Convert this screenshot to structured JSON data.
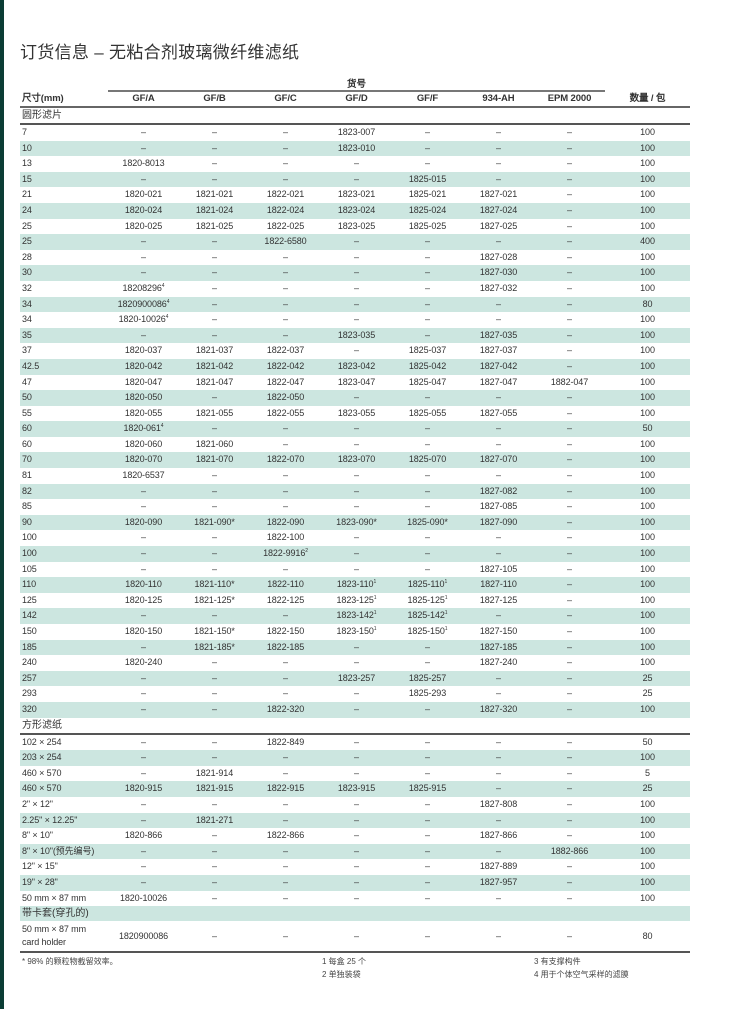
{
  "title": "订货信息 – 无粘合剂玻璃微纤维滤纸",
  "group_header": "货号",
  "columns": [
    "尺寸(mm)",
    "GF/A",
    "GF/B",
    "GF/C",
    "GF/D",
    "GF/F",
    "934-AH",
    "EPM 2000",
    "数量 / 包"
  ],
  "colors": {
    "shade": "#cce6e0",
    "accent_strip": "#0b3d35"
  },
  "sections": [
    {
      "label": "圆形滤片",
      "rows": [
        [
          "7",
          "–",
          "–",
          "–",
          "1823-007",
          "–",
          "–",
          "–",
          "100"
        ],
        [
          "10",
          "–",
          "–",
          "–",
          "1823-010",
          "–",
          "–",
          "–",
          "100"
        ],
        [
          "13",
          "1820-8013",
          "–",
          "–",
          "–",
          "–",
          "–",
          "–",
          "100"
        ],
        [
          "15",
          "–",
          "–",
          "–",
          "–",
          "1825-015",
          "–",
          "–",
          "100"
        ],
        [
          "21",
          "1820-021",
          "1821-021",
          "1822-021",
          "1823-021",
          "1825-021",
          "1827-021",
          "–",
          "100"
        ],
        [
          "24",
          "1820-024",
          "1821-024",
          "1822-024",
          "1823-024",
          "1825-024",
          "1827-024",
          "–",
          "100"
        ],
        [
          "25",
          "1820-025",
          "1821-025",
          "1822-025",
          "1823-025",
          "1825-025",
          "1827-025",
          "–",
          "100"
        ],
        [
          "25",
          "–",
          "–",
          "1822-6580",
          "–",
          "–",
          "–",
          "–",
          "400"
        ],
        [
          "28",
          "–",
          "–",
          "–",
          "–",
          "–",
          "1827-028",
          "–",
          "100"
        ],
        [
          "30",
          "–",
          "–",
          "–",
          "–",
          "–",
          "1827-030",
          "–",
          "100"
        ],
        [
          "32",
          "18208296^4",
          "–",
          "–",
          "–",
          "–",
          "1827-032",
          "–",
          "100"
        ],
        [
          "34",
          "1820900086^4",
          "–",
          "–",
          "–",
          "–",
          "–",
          "–",
          "80"
        ],
        [
          "34",
          "1820-10026^4",
          "–",
          "–",
          "–",
          "–",
          "–",
          "–",
          "100"
        ],
        [
          "35",
          "–",
          "–",
          "–",
          "1823-035",
          "–",
          "1827-035",
          "–",
          "100"
        ],
        [
          "37",
          "1820-037",
          "1821-037",
          "1822-037",
          "–",
          "1825-037",
          "1827-037",
          "–",
          "100"
        ],
        [
          "42.5",
          "1820-042",
          "1821-042",
          "1822-042",
          "1823-042",
          "1825-042",
          "1827-042",
          "–",
          "100"
        ],
        [
          "47",
          "1820-047",
          "1821-047",
          "1822-047",
          "1823-047",
          "1825-047",
          "1827-047",
          "1882-047",
          "100"
        ],
        [
          "50",
          "1820-050",
          "–",
          "1822-050",
          "–",
          "–",
          "–",
          "–",
          "100"
        ],
        [
          "55",
          "1820-055",
          "1821-055",
          "1822-055",
          "1823-055",
          "1825-055",
          "1827-055",
          "–",
          "100"
        ],
        [
          "60",
          "1820-061^4",
          "–",
          "–",
          "–",
          "–",
          "–",
          "–",
          "50"
        ],
        [
          "60",
          "1820-060",
          "1821-060",
          "–",
          "–",
          "–",
          "–",
          "–",
          "100"
        ],
        [
          "70",
          "1820-070",
          "1821-070",
          "1822-070",
          "1823-070",
          "1825-070",
          "1827-070",
          "–",
          "100"
        ],
        [
          "81",
          "1820-6537",
          "–",
          "–",
          "–",
          "–",
          "–",
          "–",
          "100"
        ],
        [
          "82",
          "–",
          "–",
          "–",
          "–",
          "–",
          "1827-082",
          "–",
          "100"
        ],
        [
          "85",
          "–",
          "–",
          "–",
          "–",
          "–",
          "1827-085",
          "–",
          "100"
        ],
        [
          "90",
          "1820-090",
          "1821-090*",
          "1822-090",
          "1823-090*",
          "1825-090*",
          "1827-090",
          "–",
          "100"
        ],
        [
          "100",
          "–",
          "–",
          "1822-100",
          "–",
          "–",
          "–",
          "–",
          "100"
        ],
        [
          "100",
          "–",
          "–",
          "1822-9916^2",
          "–",
          "–",
          "–",
          "–",
          "100"
        ],
        [
          "105",
          "–",
          "–",
          "–",
          "–",
          "–",
          "1827-105",
          "–",
          "100"
        ],
        [
          "110",
          "1820-110",
          "1821-110*",
          "1822-110",
          "1823-110^1",
          "1825-110^1",
          "1827-110",
          "–",
          "100"
        ],
        [
          "125",
          "1820-125",
          "1821-125*",
          "1822-125",
          "1823-125^1",
          "1825-125^1",
          "1827-125",
          "–",
          "100"
        ],
        [
          "142",
          "–",
          "–",
          "–",
          "1823-142^1",
          "1825-142^1",
          "–",
          "–",
          "100"
        ],
        [
          "150",
          "1820-150",
          "1821-150*",
          "1822-150",
          "1823-150^1",
          "1825-150^1",
          "1827-150",
          "–",
          "100"
        ],
        [
          "185",
          "–",
          "1821-185*",
          "1822-185",
          "–",
          "–",
          "1827-185",
          "–",
          "100"
        ],
        [
          "240",
          "1820-240",
          "–",
          "–",
          "–",
          "–",
          "1827-240",
          "–",
          "100"
        ],
        [
          "257",
          "–",
          "–",
          "–",
          "1823-257",
          "1825-257",
          "–",
          "–",
          "25"
        ],
        [
          "293",
          "–",
          "–",
          "–",
          "–",
          "1825-293",
          "–",
          "–",
          "25"
        ],
        [
          "320",
          "–",
          "–",
          "1822-320",
          "–",
          "–",
          "1827-320",
          "–",
          "100"
        ]
      ]
    },
    {
      "label": "方形滤纸",
      "rows": [
        [
          "102 × 254",
          "–",
          "–",
          "1822-849",
          "–",
          "–",
          "–",
          "–",
          "50"
        ],
        [
          "203 × 254",
          "–",
          "–",
          "–",
          "–",
          "–",
          "–",
          "–",
          "100"
        ],
        [
          "460 × 570",
          "–",
          "1821-914",
          "–",
          "–",
          "–",
          "–",
          "–",
          "5"
        ],
        [
          "460 × 570",
          "1820-915",
          "1821-915",
          "1822-915",
          "1823-915",
          "1825-915",
          "–",
          "–",
          "25"
        ],
        [
          "2\" × 12\"",
          "–",
          "–",
          "–",
          "–",
          "–",
          "1827-808",
          "–",
          "100"
        ],
        [
          "2.25\" × 12.25\"",
          "–",
          "1821-271",
          "–",
          "–",
          "–",
          "–",
          "–",
          "100"
        ],
        [
          "8\" × 10\"",
          "1820-866",
          "–",
          "1822-866",
          "–",
          "–",
          "1827-866",
          "–",
          "100"
        ],
        [
          "8\" × 10\"(预先编号)",
          "–",
          "–",
          "–",
          "–",
          "–",
          "–",
          "1882-866",
          "100"
        ],
        [
          "12\" × 15\"",
          "–",
          "–",
          "–",
          "–",
          "–",
          "1827-889",
          "–",
          "100"
        ],
        [
          "19\" × 28\"",
          "–",
          "–",
          "–",
          "–",
          "–",
          "1827-957",
          "–",
          "100"
        ],
        [
          "50 mm × 87 mm",
          "1820-10026",
          "–",
          "–",
          "–",
          "–",
          "–",
          "–",
          "100"
        ]
      ]
    },
    {
      "label": "带卡套(穿孔的)",
      "rows": [
        [
          "50 mm × 87 mm\ncard holder",
          "1820900086",
          "–",
          "–",
          "–",
          "–",
          "–",
          "–",
          "80"
        ]
      ]
    }
  ],
  "footnotes": {
    "star": "*  98% 的颗粒物截留效率。",
    "n1": "1 每盒 25 个",
    "n2": "2 单独装袋",
    "n3": "3 有支撑构件",
    "n4": "4 用于个体空气采样的滤膜"
  }
}
